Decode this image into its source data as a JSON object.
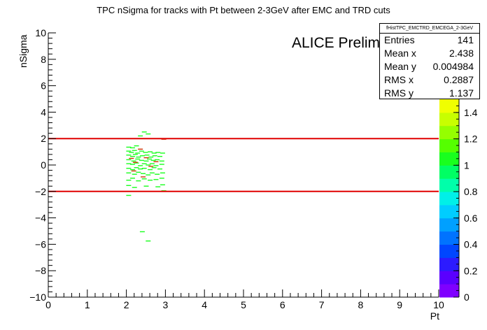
{
  "chart_data": {
    "type": "heatmap",
    "title": "TPC nSigma for tracks with Pt between 2-3GeV after EMC and TRD cuts",
    "xlabel": "Pt",
    "ylabel": "nSigma",
    "xlim": [
      0,
      10
    ],
    "ylim": [
      -10,
      10
    ],
    "x_ticks": [
      "0",
      "1",
      "2",
      "3",
      "4",
      "5",
      "6",
      "7",
      "8",
      "9",
      "10"
    ],
    "y_ticks": [
      "−10",
      "−8",
      "−6",
      "−4",
      "−2",
      "0",
      "2",
      "4",
      "6",
      "8",
      "10"
    ],
    "annotation": "ALICE Preliminary",
    "cut_lines": [
      2,
      -2
    ],
    "cut_color": "#e00000",
    "colorbar": {
      "ticks": [
        "0",
        "0.2",
        "0.4",
        "0.6",
        "0.8",
        "1",
        "1.2",
        "1.4"
      ],
      "range": [
        0,
        1.5
      ]
    },
    "points": [
      [
        2.05,
        1.35,
        1
      ],
      [
        2.15,
        1.3,
        1
      ],
      [
        2.25,
        1.45,
        1
      ],
      [
        2.45,
        2.5,
        1
      ],
      [
        2.55,
        2.35,
        1
      ],
      [
        2.35,
        2.2,
        1
      ],
      [
        2.05,
        1.05,
        1
      ],
      [
        2.12,
        0.95,
        1
      ],
      [
        2.2,
        1.1,
        1
      ],
      [
        2.28,
        0.9,
        1
      ],
      [
        2.38,
        1.05,
        1
      ],
      [
        2.48,
        0.95,
        1
      ],
      [
        2.6,
        1.0,
        1
      ],
      [
        2.7,
        0.9,
        1
      ],
      [
        2.8,
        0.95,
        1
      ],
      [
        2.92,
        0.9,
        1
      ],
      [
        2.05,
        0.75,
        1
      ],
      [
        2.15,
        0.65,
        1
      ],
      [
        2.22,
        0.8,
        1
      ],
      [
        2.3,
        0.6,
        1
      ],
      [
        2.4,
        0.7,
        1
      ],
      [
        2.52,
        0.75,
        1
      ],
      [
        2.62,
        0.6,
        1
      ],
      [
        2.72,
        0.7,
        1
      ],
      [
        2.85,
        0.65,
        1
      ],
      [
        2.05,
        0.4,
        1
      ],
      [
        2.18,
        0.3,
        1
      ],
      [
        2.28,
        0.45,
        1
      ],
      [
        2.38,
        0.35,
        1
      ],
      [
        2.5,
        0.3,
        1
      ],
      [
        2.58,
        0.45,
        1
      ],
      [
        2.68,
        0.35,
        1
      ],
      [
        2.78,
        0.4,
        1
      ],
      [
        2.9,
        0.3,
        1
      ],
      [
        2.05,
        0.1,
        1
      ],
      [
        2.15,
        0.05,
        1
      ],
      [
        2.25,
        0.15,
        1
      ],
      [
        2.35,
        -0.05,
        1
      ],
      [
        2.45,
        0.1,
        1
      ],
      [
        2.55,
        0.0,
        1
      ],
      [
        2.65,
        0.1,
        1
      ],
      [
        2.75,
        -0.05,
        1
      ],
      [
        2.9,
        0.05,
        1
      ],
      [
        2.05,
        -0.25,
        1
      ],
      [
        2.15,
        -0.35,
        1
      ],
      [
        2.25,
        -0.2,
        1
      ],
      [
        2.35,
        -0.3,
        1
      ],
      [
        2.45,
        -0.25,
        1
      ],
      [
        2.6,
        -0.35,
        1
      ],
      [
        2.7,
        -0.2,
        1
      ],
      [
        2.85,
        -0.3,
        1
      ],
      [
        2.05,
        -0.6,
        1
      ],
      [
        2.2,
        -0.7,
        1
      ],
      [
        2.3,
        -0.55,
        1
      ],
      [
        2.42,
        -0.65,
        1
      ],
      [
        2.55,
        -0.75,
        1
      ],
      [
        2.65,
        -0.6,
        1
      ],
      [
        2.78,
        -0.7,
        1
      ],
      [
        2.92,
        -0.6,
        1
      ],
      [
        2.05,
        -1.15,
        1
      ],
      [
        2.15,
        -1.0,
        1
      ],
      [
        2.3,
        -1.2,
        1
      ],
      [
        2.45,
        -1.05,
        1
      ],
      [
        2.6,
        -1.15,
        1
      ],
      [
        2.75,
        -1.1,
        1
      ],
      [
        2.9,
        -1.0,
        1
      ],
      [
        2.05,
        -1.55,
        1
      ],
      [
        2.2,
        -1.7,
        1
      ],
      [
        2.5,
        -1.6,
        1
      ],
      [
        2.8,
        -1.65,
        1
      ],
      [
        2.92,
        -1.5,
        1
      ],
      [
        2.05,
        -2.3,
        1
      ],
      [
        2.95,
        -1.95,
        1
      ],
      [
        2.4,
        -5.05,
        1
      ],
      [
        2.55,
        -5.75,
        1
      ],
      [
        2.12,
        0.5,
        2
      ],
      [
        2.22,
        0.2,
        2
      ],
      [
        2.35,
        1.2,
        2
      ],
      [
        2.5,
        0.55,
        2
      ],
      [
        2.62,
        -0.1,
        2
      ],
      [
        2.18,
        -0.45,
        2
      ],
      [
        2.75,
        0.25,
        2
      ],
      [
        2.42,
        -0.9,
        2
      ],
      [
        2.95,
        1.95,
        2
      ]
    ]
  },
  "stats": {
    "name": "fHistTPC_EMCTRD_EMCEGA_2-3GeV",
    "rows": [
      {
        "label": "Entries",
        "value": "141"
      },
      {
        "label": "Mean x",
        "value": "2.438"
      },
      {
        "label": "Mean y",
        "value": "0.004984"
      },
      {
        "label": "RMS x",
        "value": "0.2887"
      },
      {
        "label": "RMS y",
        "value": "1.137"
      }
    ]
  }
}
